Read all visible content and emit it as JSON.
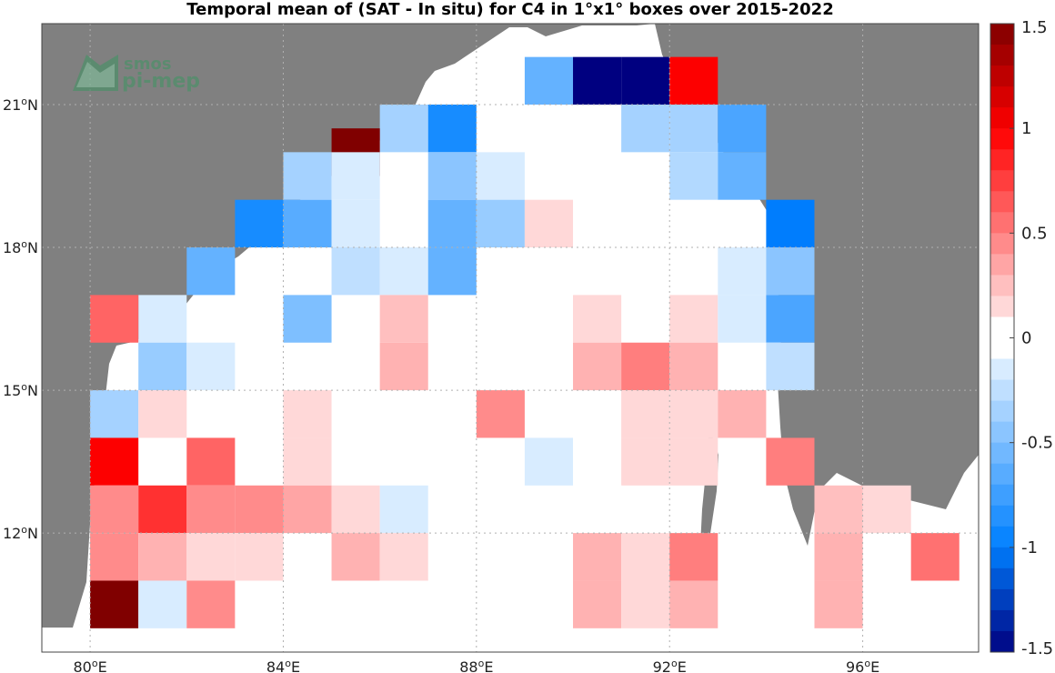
{
  "title": "Temporal mean of (SAT - In situ) for C4 in 1°x1° boxes over 2015-2022",
  "logo": {
    "line1": "smos",
    "line2": "pi-mep"
  },
  "x_ticks": [
    {
      "value": 80,
      "label": "80",
      "suffix": "E"
    },
    {
      "value": 84,
      "label": "84",
      "suffix": "E"
    },
    {
      "value": 88,
      "label": "88",
      "suffix": "E"
    },
    {
      "value": 92,
      "label": "92",
      "suffix": "E"
    },
    {
      "value": 96,
      "label": "96",
      "suffix": "E"
    }
  ],
  "y_ticks": [
    {
      "value": 21,
      "label": "21",
      "suffix": "N"
    },
    {
      "value": 18,
      "label": "18",
      "suffix": "N"
    },
    {
      "value": 15,
      "label": "15",
      "suffix": "N"
    },
    {
      "value": 12,
      "label": "12",
      "suffix": "N"
    }
  ],
  "colorbar": {
    "range": [
      -1.5,
      1.5
    ],
    "levels": 30,
    "tick_labels": [
      {
        "value": 1.5,
        "label": "1.5"
      },
      {
        "value": 1,
        "label": "1"
      },
      {
        "value": 0.5,
        "label": "0.5"
      },
      {
        "value": 0,
        "label": "0"
      },
      {
        "value": -0.5,
        "label": "-0.5"
      },
      {
        "value": -1,
        "label": "-1"
      },
      {
        "value": -1.5,
        "label": "-1.5"
      }
    ]
  },
  "colors": {
    "land": "#808080",
    "ocean": "#ffffff",
    "grid": "#b0b0b0",
    "logo": "#4f8f6a"
  },
  "chart_data": {
    "type": "heatmap",
    "title": "Temporal mean of (SAT - In situ) for C4 in 1°x1° boxes over 2015-2022",
    "xlim": [
      79.0,
      98.4
    ],
    "ylim": [
      9.5,
      22.7
    ],
    "cell_size_deg": 1,
    "cells": [
      {
        "lon": 89.5,
        "lat": 21.5,
        "value": -0.6
      },
      {
        "lon": 90.5,
        "lat": 21.5,
        "value": -1.5
      },
      {
        "lon": 91.5,
        "lat": 21.5,
        "value": -1.5
      },
      {
        "lon": 92.5,
        "lat": 21.5,
        "value": 1.0
      },
      {
        "lon": 86.5,
        "lat": 20.5,
        "value": -0.35
      },
      {
        "lon": 87.5,
        "lat": 20.5,
        "value": -0.9
      },
      {
        "lon": 91.5,
        "lat": 20.5,
        "value": -0.35
      },
      {
        "lon": 92.5,
        "lat": 20.5,
        "value": -0.35
      },
      {
        "lon": 93.5,
        "lat": 20.5,
        "value": -0.7
      },
      {
        "lon": 85.5,
        "lat": 20.0,
        "value": 1.5
      },
      {
        "lon": 84.5,
        "lat": 19.5,
        "value": -0.35
      },
      {
        "lon": 85.5,
        "lat": 19.5,
        "value": -0.15
      },
      {
        "lon": 87.5,
        "lat": 19.5,
        "value": -0.45
      },
      {
        "lon": 88.5,
        "lat": 19.5,
        "value": -0.15
      },
      {
        "lon": 92.5,
        "lat": 19.5,
        "value": -0.3
      },
      {
        "lon": 93.5,
        "lat": 19.5,
        "value": -0.6
      },
      {
        "lon": 83.5,
        "lat": 18.5,
        "value": -0.9
      },
      {
        "lon": 84.5,
        "lat": 18.5,
        "value": -0.65
      },
      {
        "lon": 85.5,
        "lat": 18.5,
        "value": -0.15
      },
      {
        "lon": 87.5,
        "lat": 18.5,
        "value": -0.6
      },
      {
        "lon": 88.5,
        "lat": 18.5,
        "value": -0.4
      },
      {
        "lon": 89.5,
        "lat": 18.5,
        "value": 0.15
      },
      {
        "lon": 94.5,
        "lat": 18.5,
        "value": -1.0
      },
      {
        "lon": 82.5,
        "lat": 17.5,
        "value": -0.6
      },
      {
        "lon": 85.5,
        "lat": 17.5,
        "value": -0.25
      },
      {
        "lon": 86.5,
        "lat": 17.5,
        "value": -0.15
      },
      {
        "lon": 87.5,
        "lat": 17.5,
        "value": -0.6
      },
      {
        "lon": 93.5,
        "lat": 17.5,
        "value": -0.15
      },
      {
        "lon": 94.5,
        "lat": 17.5,
        "value": -0.45
      },
      {
        "lon": 81.5,
        "lat": 16.5,
        "value": -0.15
      },
      {
        "lon": 84.5,
        "lat": 16.5,
        "value": -0.5
      },
      {
        "lon": 86.5,
        "lat": 16.5,
        "value": 0.25
      },
      {
        "lon": 90.5,
        "lat": 16.5,
        "value": 0.15
      },
      {
        "lon": 92.5,
        "lat": 16.5,
        "value": 0.15
      },
      {
        "lon": 93.5,
        "lat": 16.5,
        "value": -0.15
      },
      {
        "lon": 94.5,
        "lat": 16.5,
        "value": -0.7
      },
      {
        "lon": 80.5,
        "lat": 16.5,
        "value": 0.6
      },
      {
        "lon": 81.5,
        "lat": 15.5,
        "value": -0.4
      },
      {
        "lon": 82.5,
        "lat": 15.5,
        "value": -0.15
      },
      {
        "lon": 86.5,
        "lat": 15.5,
        "value": 0.3
      },
      {
        "lon": 90.5,
        "lat": 15.5,
        "value": 0.3
      },
      {
        "lon": 91.5,
        "lat": 15.5,
        "value": 0.5
      },
      {
        "lon": 92.5,
        "lat": 15.5,
        "value": 0.3
      },
      {
        "lon": 94.5,
        "lat": 15.5,
        "value": -0.25
      },
      {
        "lon": 80.5,
        "lat": 14.5,
        "value": -0.35
      },
      {
        "lon": 81.5,
        "lat": 14.5,
        "value": 0.15
      },
      {
        "lon": 84.5,
        "lat": 14.5,
        "value": 0.15
      },
      {
        "lon": 88.5,
        "lat": 14.5,
        "value": 0.45
      },
      {
        "lon": 91.5,
        "lat": 14.5,
        "value": 0.15
      },
      {
        "lon": 92.5,
        "lat": 14.5,
        "value": 0.15
      },
      {
        "lon": 93.5,
        "lat": 14.5,
        "value": 0.3
      },
      {
        "lon": 80.5,
        "lat": 13.5,
        "value": 1.0
      },
      {
        "lon": 82.5,
        "lat": 13.5,
        "value": 0.6
      },
      {
        "lon": 84.5,
        "lat": 13.5,
        "value": 0.15
      },
      {
        "lon": 89.5,
        "lat": 13.5,
        "value": -0.15
      },
      {
        "lon": 91.5,
        "lat": 13.5,
        "value": 0.15
      },
      {
        "lon": 92.5,
        "lat": 13.5,
        "value": 0.15
      },
      {
        "lon": 94.5,
        "lat": 13.5,
        "value": 0.5
      },
      {
        "lon": 80.5,
        "lat": 12.5,
        "value": 0.45
      },
      {
        "lon": 81.5,
        "lat": 12.5,
        "value": 0.8
      },
      {
        "lon": 82.5,
        "lat": 12.5,
        "value": 0.45
      },
      {
        "lon": 83.5,
        "lat": 12.5,
        "value": 0.45
      },
      {
        "lon": 84.5,
        "lat": 12.5,
        "value": 0.35
      },
      {
        "lon": 85.5,
        "lat": 12.5,
        "value": 0.15
      },
      {
        "lon": 86.5,
        "lat": 12.5,
        "value": -0.15
      },
      {
        "lon": 95.5,
        "lat": 12.5,
        "value": 0.25
      },
      {
        "lon": 96.5,
        "lat": 12.5,
        "value": 0.15
      },
      {
        "lon": 80.5,
        "lat": 11.5,
        "value": 0.45
      },
      {
        "lon": 81.5,
        "lat": 11.5,
        "value": 0.3
      },
      {
        "lon": 82.5,
        "lat": 11.5,
        "value": 0.15
      },
      {
        "lon": 83.5,
        "lat": 11.5,
        "value": 0.15
      },
      {
        "lon": 85.5,
        "lat": 11.5,
        "value": 0.3
      },
      {
        "lon": 86.5,
        "lat": 11.5,
        "value": 0.15
      },
      {
        "lon": 90.5,
        "lat": 11.5,
        "value": 0.3
      },
      {
        "lon": 91.5,
        "lat": 11.5,
        "value": 0.15
      },
      {
        "lon": 92.5,
        "lat": 11.5,
        "value": 0.5
      },
      {
        "lon": 95.5,
        "lat": 11.5,
        "value": 0.3
      },
      {
        "lon": 97.5,
        "lat": 11.5,
        "value": 0.55
      },
      {
        "lon": 80.5,
        "lat": 10.5,
        "value": 1.5
      },
      {
        "lon": 81.5,
        "lat": 10.5,
        "value": -0.15
      },
      {
        "lon": 82.5,
        "lat": 10.5,
        "value": 0.45
      },
      {
        "lon": 90.5,
        "lat": 10.5,
        "value": 0.3
      },
      {
        "lon": 91.5,
        "lat": 10.5,
        "value": 0.15
      },
      {
        "lon": 92.5,
        "lat": 10.5,
        "value": 0.3
      },
      {
        "lon": 95.5,
        "lat": 10.5,
        "value": 0.3
      }
    ]
  }
}
